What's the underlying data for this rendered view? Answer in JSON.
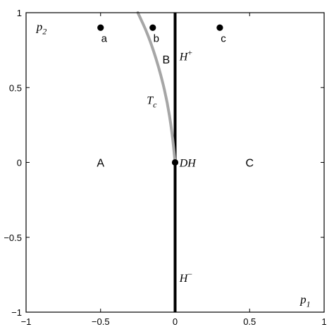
{
  "chart_data": {
    "type": "line",
    "xlim": [
      -1,
      1
    ],
    "ylim": [
      -1,
      1
    ],
    "grid": false,
    "x_ticks": [
      -1,
      -0.5,
      0,
      0.5,
      1
    ],
    "x_tick_labels": [
      "−1",
      "−0.5",
      "0",
      "0.5",
      "1"
    ],
    "y_ticks": [
      -1,
      -0.5,
      0,
      0.5,
      1
    ],
    "y_tick_labels": [
      "−1",
      "−0.5",
      "0",
      "0.5",
      "1"
    ],
    "corner_labels": {
      "y_var": {
        "base": "p",
        "sub": "2",
        "x": -0.93,
        "y": 0.88
      },
      "x_var": {
        "base": "p",
        "sub": "1",
        "x": 0.84,
        "y": -0.94
      }
    },
    "series": [
      {
        "type": "line",
        "color": "#000000",
        "x": [
          0,
          0
        ],
        "y": [
          -1,
          1
        ]
      },
      {
        "type": "curve",
        "color": "#a6a6a6",
        "x": [
          -0.25,
          -0.18,
          -0.11,
          -0.055,
          -0.02,
          0
        ],
        "y": [
          1.0,
          0.85,
          0.64,
          0.42,
          0.2,
          0.0
        ]
      }
    ],
    "points": [
      {
        "label": "a",
        "x": -0.5,
        "y": 0.9
      },
      {
        "label": "b",
        "x": -0.15,
        "y": 0.9
      },
      {
        "label": "c",
        "x": 0.3,
        "y": 0.9
      },
      {
        "label": "",
        "x": 0,
        "y": 0
      }
    ],
    "annotations": [
      {
        "text": "A",
        "x": -0.5,
        "y": 0.0,
        "style": "region"
      },
      {
        "text": "B",
        "x": -0.06,
        "y": 0.69,
        "style": "region"
      },
      {
        "text": "C",
        "x": 0.5,
        "y": 0.0,
        "style": "region"
      },
      {
        "text": "DH",
        "x": 0.02,
        "y": 0.0,
        "style": "math"
      },
      {
        "text": "T",
        "sub": "c",
        "x": -0.2,
        "y": 0.42,
        "style": "math"
      },
      {
        "text": "H",
        "sup": "+",
        "x": 0.02,
        "y": 0.71,
        "style": "math"
      },
      {
        "text": "H",
        "sup": "−",
        "x": 0.02,
        "y": -0.77,
        "style": "math"
      }
    ]
  }
}
